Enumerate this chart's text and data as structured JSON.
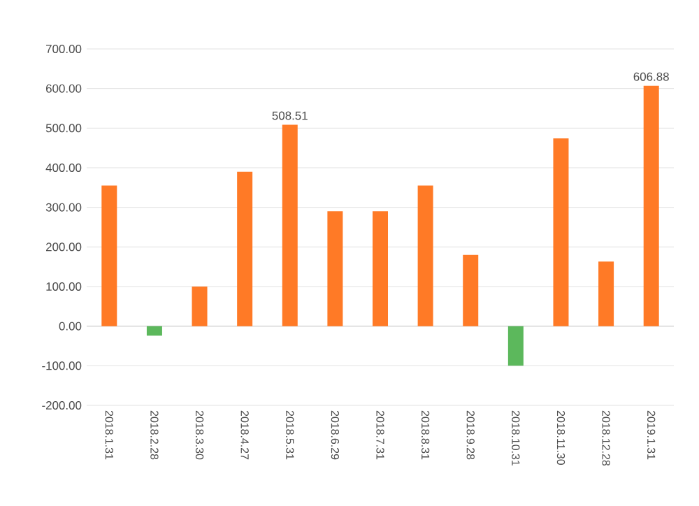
{
  "chart_data": {
    "type": "bar",
    "categories": [
      "2018.1.31",
      "2018.2.28",
      "2018.3.30",
      "2018.4.27",
      "2018.5.31",
      "2018.6.29",
      "2018.7.31",
      "2018.8.31",
      "2018.9.28",
      "2018.10.31",
      "2018.11.30",
      "2018.12.28",
      "2019.1.31"
    ],
    "values": [
      355,
      -24,
      100,
      390,
      508.51,
      290,
      290,
      355,
      180,
      -100,
      474,
      163,
      606.88
    ],
    "colors": [
      "#ff7a26",
      "#5cb85c",
      "#ff7a26",
      "#ff7a26",
      "#ff7a26",
      "#ff7a26",
      "#ff7a26",
      "#ff7a26",
      "#ff7a26",
      "#5cb85c",
      "#ff7a26",
      "#ff7a26",
      "#ff7a26"
    ],
    "value_labels": [
      null,
      null,
      null,
      null,
      "508.51",
      null,
      null,
      null,
      null,
      null,
      null,
      null,
      "606.88"
    ],
    "ylim": [
      -200,
      700
    ],
    "yticks": [
      {
        "value": -200,
        "label": "-200.00"
      },
      {
        "value": -100,
        "label": "-100.00"
      },
      {
        "value": 0,
        "label": "0.00"
      },
      {
        "value": 100,
        "label": "100.00"
      },
      {
        "value": 200,
        "label": "200.00"
      },
      {
        "value": 300,
        "label": "300.00"
      },
      {
        "value": 400,
        "label": "400.00"
      },
      {
        "value": 500,
        "label": "500.00"
      },
      {
        "value": 600,
        "label": "600.00"
      },
      {
        "value": 700,
        "label": "700.00"
      }
    ],
    "grid": "y"
  }
}
